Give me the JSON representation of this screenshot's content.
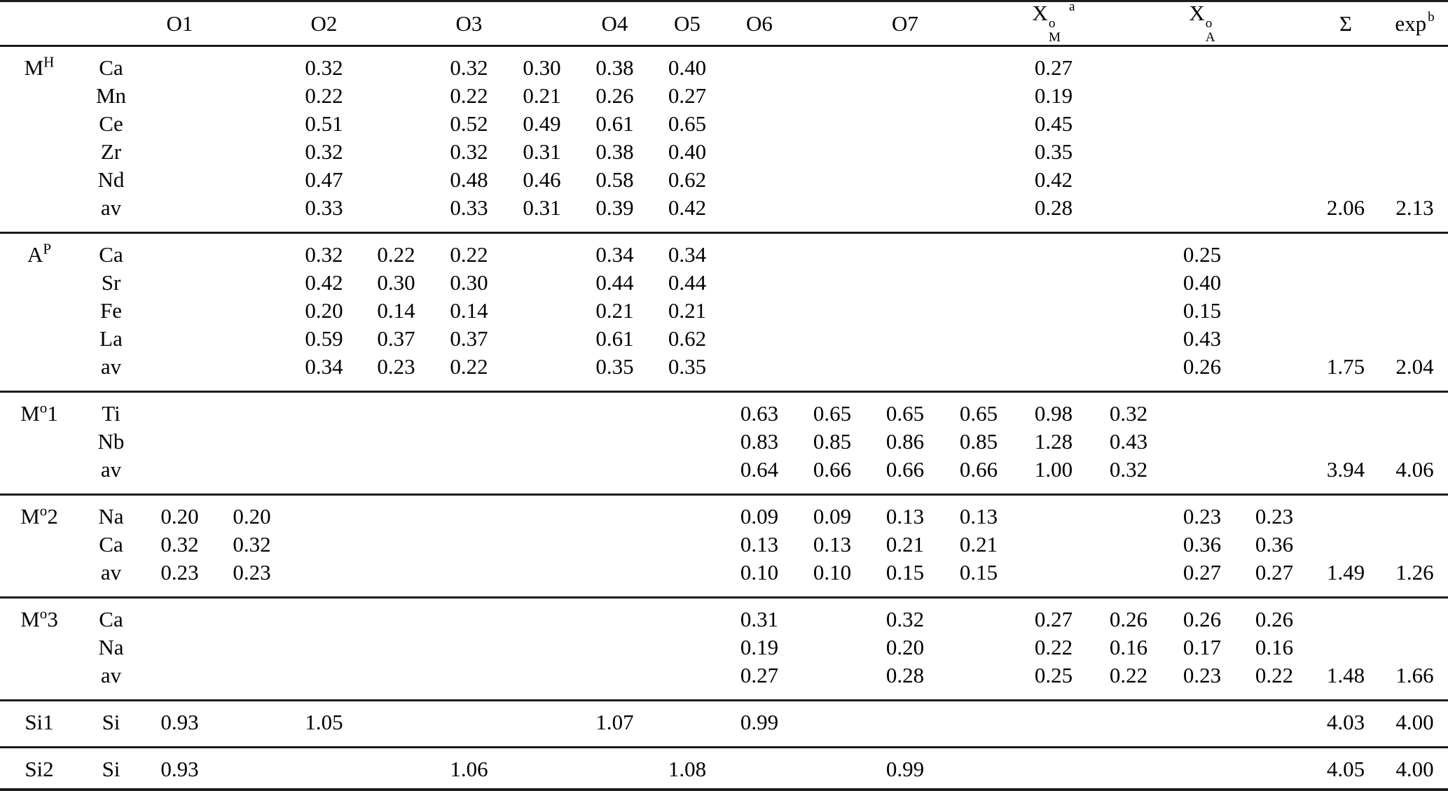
{
  "table": {
    "headers": {
      "o1": "O1",
      "o2": "O2",
      "o3": "O3",
      "o4": "O4",
      "o5": "O5",
      "o6": "O6",
      "o7": "O7",
      "xm": {
        "base": "X",
        "sup": "o",
        "sub": "M",
        "fn": "a"
      },
      "xa": {
        "base": "X",
        "sup": "o",
        "sub": "A"
      },
      "sigma": "Σ",
      "exp": {
        "base": "exp",
        "fn": "b"
      }
    },
    "columns": [
      "o1a",
      "o1b",
      "o2a",
      "o2b",
      "o3a",
      "o3b",
      "o4",
      "o5",
      "o6a",
      "o6b",
      "o7a",
      "o7b",
      "xma",
      "xmb",
      "xaa",
      "xab",
      "sum",
      "exp"
    ],
    "sections": [
      {
        "site": {
          "base": "M",
          "sup": "H",
          "tail": ""
        },
        "rows": [
          {
            "el": "Ca",
            "v": [
              "",
              "",
              "0.32",
              "",
              "0.32",
              "0.30",
              "0.38",
              "0.40",
              "",
              "",
              "",
              "",
              "0.27",
              "",
              "",
              "",
              "",
              ""
            ]
          },
          {
            "el": "Mn",
            "v": [
              "",
              "",
              "0.22",
              "",
              "0.22",
              "0.21",
              "0.26",
              "0.27",
              "",
              "",
              "",
              "",
              "0.19",
              "",
              "",
              "",
              "",
              ""
            ]
          },
          {
            "el": "Ce",
            "v": [
              "",
              "",
              "0.51",
              "",
              "0.52",
              "0.49",
              "0.61",
              "0.65",
              "",
              "",
              "",
              "",
              "0.45",
              "",
              "",
              "",
              "",
              ""
            ]
          },
          {
            "el": "Zr",
            "v": [
              "",
              "",
              "0.32",
              "",
              "0.32",
              "0.31",
              "0.38",
              "0.40",
              "",
              "",
              "",
              "",
              "0.35",
              "",
              "",
              "",
              "",
              ""
            ]
          },
          {
            "el": "Nd",
            "v": [
              "",
              "",
              "0.47",
              "",
              "0.48",
              "0.46",
              "0.58",
              "0.62",
              "",
              "",
              "",
              "",
              "0.42",
              "",
              "",
              "",
              "",
              ""
            ]
          },
          {
            "el": "av",
            "v": [
              "",
              "",
              "0.33",
              "",
              "0.33",
              "0.31",
              "0.39",
              "0.42",
              "",
              "",
              "",
              "",
              "0.28",
              "",
              "",
              "",
              "2.06",
              "2.13"
            ]
          }
        ]
      },
      {
        "site": {
          "base": "A",
          "sup": "P",
          "tail": ""
        },
        "rows": [
          {
            "el": "Ca",
            "v": [
              "",
              "",
              "0.32",
              "0.22",
              "0.22",
              "",
              "0.34",
              "0.34",
              "",
              "",
              "",
              "",
              "",
              "",
              "0.25",
              "",
              "",
              ""
            ]
          },
          {
            "el": "Sr",
            "v": [
              "",
              "",
              "0.42",
              "0.30",
              "0.30",
              "",
              "0.44",
              "0.44",
              "",
              "",
              "",
              "",
              "",
              "",
              "0.40",
              "",
              "",
              ""
            ]
          },
          {
            "el": "Fe",
            "v": [
              "",
              "",
              "0.20",
              "0.14",
              "0.14",
              "",
              "0.21",
              "0.21",
              "",
              "",
              "",
              "",
              "",
              "",
              "0.15",
              "",
              "",
              ""
            ]
          },
          {
            "el": "La",
            "v": [
              "",
              "",
              "0.59",
              "0.37",
              "0.37",
              "",
              "0.61",
              "0.62",
              "",
              "",
              "",
              "",
              "",
              "",
              "0.43",
              "",
              "",
              ""
            ]
          },
          {
            "el": "av",
            "v": [
              "",
              "",
              "0.34",
              "0.23",
              "0.22",
              "",
              "0.35",
              "0.35",
              "",
              "",
              "",
              "",
              "",
              "",
              "0.26",
              "",
              "1.75",
              "2.04"
            ]
          }
        ]
      },
      {
        "site": {
          "base": "M",
          "sup": "o",
          "tail": "1"
        },
        "rows": [
          {
            "el": "Ti",
            "v": [
              "",
              "",
              "",
              "",
              "",
              "",
              "",
              "",
              "0.63",
              "0.65",
              "0.65",
              "0.65",
              "0.98",
              "0.32",
              "",
              "",
              "",
              ""
            ]
          },
          {
            "el": "Nb",
            "v": [
              "",
              "",
              "",
              "",
              "",
              "",
              "",
              "",
              "0.83",
              "0.85",
              "0.86",
              "0.85",
              "1.28",
              "0.43",
              "",
              "",
              "",
              ""
            ]
          },
          {
            "el": "av",
            "v": [
              "",
              "",
              "",
              "",
              "",
              "",
              "",
              "",
              "0.64",
              "0.66",
              "0.66",
              "0.66",
              "1.00",
              "0.32",
              "",
              "",
              "3.94",
              "4.06"
            ]
          }
        ]
      },
      {
        "site": {
          "base": "M",
          "sup": "o",
          "tail": "2"
        },
        "rows": [
          {
            "el": "Na",
            "v": [
              "0.20",
              "0.20",
              "",
              "",
              "",
              "",
              "",
              "",
              "0.09",
              "0.09",
              "0.13",
              "0.13",
              "",
              "",
              "0.23",
              "0.23",
              "",
              ""
            ]
          },
          {
            "el": "Ca",
            "v": [
              "0.32",
              "0.32",
              "",
              "",
              "",
              "",
              "",
              "",
              "0.13",
              "0.13",
              "0.21",
              "0.21",
              "",
              "",
              "0.36",
              "0.36",
              "",
              ""
            ]
          },
          {
            "el": "av",
            "v": [
              "0.23",
              "0.23",
              "",
              "",
              "",
              "",
              "",
              "",
              "0.10",
              "0.10",
              "0.15",
              "0.15",
              "",
              "",
              "0.27",
              "0.27",
              "1.49",
              "1.26"
            ]
          }
        ]
      },
      {
        "site": {
          "base": "M",
          "sup": "o",
          "tail": "3"
        },
        "rows": [
          {
            "el": "Ca",
            "v": [
              "",
              "",
              "",
              "",
              "",
              "",
              "",
              "",
              "0.31",
              "",
              "0.32",
              "",
              "0.27",
              "0.26",
              "0.26",
              "0.26",
              "",
              ""
            ]
          },
          {
            "el": "Na",
            "v": [
              "",
              "",
              "",
              "",
              "",
              "",
              "",
              "",
              "0.19",
              "",
              "0.20",
              "",
              "0.22",
              "0.16",
              "0.17",
              "0.16",
              "",
              ""
            ]
          },
          {
            "el": "av",
            "v": [
              "",
              "",
              "",
              "",
              "",
              "",
              "",
              "",
              "0.27",
              "",
              "0.28",
              "",
              "0.25",
              "0.22",
              "0.23",
              "0.22",
              "1.48",
              "1.66"
            ]
          }
        ]
      },
      {
        "site": {
          "base": "Si1",
          "sup": "",
          "tail": ""
        },
        "rows": [
          {
            "el": "Si",
            "v": [
              "0.93",
              "",
              "1.05",
              "",
              "",
              "",
              "1.07",
              "",
              "0.99",
              "",
              "",
              "",
              "",
              "",
              "",
              "",
              "4.03",
              "4.00"
            ]
          }
        ]
      },
      {
        "site": {
          "base": "Si2",
          "sup": "",
          "tail": ""
        },
        "rows": [
          {
            "el": "Si",
            "v": [
              "0.93",
              "",
              "",
              "",
              "1.06",
              "",
              "",
              "1.08",
              "",
              "",
              "0.99",
              "",
              "",
              "",
              "",
              "",
              "4.05",
              "4.00"
            ]
          }
        ]
      }
    ]
  }
}
